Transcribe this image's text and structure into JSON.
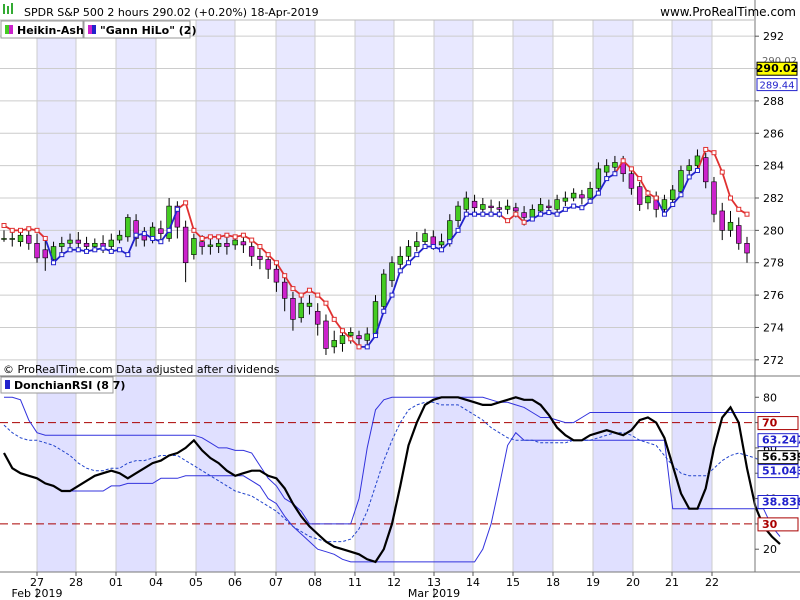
{
  "header": {
    "title": "SPDR S&P 500 2 hours 290.02 (+0.20%) 18-Apr-2019",
    "site": "www.ProRealTime.com"
  },
  "price_panel": {
    "legend": [
      {
        "label": "Heikin-Ashi",
        "up_color": "#44cc22",
        "down_color": "#cc22cc"
      },
      {
        "label": "\"Gann HiLo\" (2)",
        "color": "#2222cc"
      }
    ],
    "copyright": "© ProRealTime.com Data adjusted after dividends",
    "y_ticks": [
      272,
      274,
      276,
      278,
      280,
      282,
      284,
      286,
      288,
      290,
      292
    ],
    "last_price_badge": "290.02",
    "ghost_labels": [
      "290.02",
      "289.44"
    ]
  },
  "indicator_panel": {
    "title": "DonchianRSI (8 7)",
    "y_ticks": [
      20,
      30,
      40,
      50,
      60,
      70,
      80
    ],
    "badges": [
      {
        "text": "70",
        "value": 70,
        "color": "#aa0000"
      },
      {
        "text": "63.247",
        "value": 63.247,
        "color": "#2222cc"
      },
      {
        "text": "56.539",
        "value": 56.539,
        "color": "#000000"
      },
      {
        "text": "51.043",
        "value": 51.043,
        "color": "#2222cc"
      },
      {
        "text": "38.838",
        "value": 38.838,
        "color": "#2222cc"
      },
      {
        "text": "30",
        "value": 30,
        "color": "#aa0000"
      }
    ]
  },
  "x_axis": {
    "day_labels": [
      "27",
      "28",
      "01",
      "04",
      "05",
      "06",
      "07",
      "08",
      "11",
      "12",
      "13",
      "14",
      "15",
      "18",
      "19",
      "20",
      "21",
      "22"
    ],
    "month_labels": [
      {
        "text": "Feb 2019",
        "at_day": 0
      },
      {
        "text": "Mar 2019",
        "at_day": 10
      }
    ]
  },
  "chart_data": {
    "type": "candlestick",
    "title": "SPDR S&P 500 2 hours 290.02 (+0.20%) 18-Apr-2019",
    "price_range": [
      271,
      293
    ],
    "days": [
      "27",
      "28",
      "01",
      "04",
      "05",
      "06",
      "07",
      "08",
      "11",
      "12",
      "13",
      "14",
      "15",
      "18",
      "19",
      "20",
      "21",
      "22"
    ],
    "candles": [
      [
        279.5,
        279.5,
        280.0,
        279.3
      ],
      [
        279.5,
        279.5,
        280.0,
        279.0
      ],
      [
        279.3,
        279.7,
        280.1,
        279.0
      ],
      [
        279.7,
        279.2,
        280.0,
        278.8
      ],
      [
        279.2,
        278.3,
        279.8,
        278.0
      ],
      [
        278.8,
        278.3,
        279.5,
        277.5
      ],
      [
        278.2,
        279.0,
        279.3,
        278.0
      ],
      [
        279.0,
        279.2,
        279.6,
        278.5
      ],
      [
        279.2,
        279.4,
        279.8,
        278.8
      ],
      [
        279.4,
        279.2,
        279.9,
        278.8
      ],
      [
        279.2,
        279.0,
        279.6,
        278.6
      ],
      [
        279.0,
        279.2,
        279.5,
        278.8
      ],
      [
        279.2,
        279.0,
        279.7,
        278.6
      ],
      [
        279.0,
        279.4,
        279.8,
        278.7
      ],
      [
        279.4,
        279.7,
        280.0,
        279.2
      ],
      [
        279.6,
        280.8,
        281.0,
        279.3
      ],
      [
        280.6,
        279.5,
        281.0,
        279.0
      ],
      [
        279.7,
        279.4,
        280.2,
        279.0
      ],
      [
        279.5,
        280.2,
        280.5,
        279.2
      ],
      [
        280.1,
        279.8,
        280.6,
        279.3
      ],
      [
        279.5,
        281.5,
        282.0,
        279.3
      ],
      [
        281.5,
        280.2,
        281.8,
        279.5
      ],
      [
        280.2,
        278.0,
        280.6,
        276.8
      ],
      [
        278.5,
        279.5,
        279.8,
        278.2
      ],
      [
        279.3,
        279.0,
        279.7,
        278.5
      ],
      [
        279.0,
        279.1,
        279.5,
        278.5
      ],
      [
        279.0,
        279.2,
        279.6,
        278.6
      ],
      [
        279.2,
        279.0,
        279.6,
        278.5
      ],
      [
        279.1,
        279.4,
        279.7,
        278.8
      ],
      [
        279.3,
        279.1,
        279.6,
        278.6
      ],
      [
        279.0,
        278.4,
        279.4,
        277.8
      ],
      [
        278.4,
        278.2,
        278.9,
        277.6
      ],
      [
        278.2,
        277.6,
        278.6,
        277.0
      ],
      [
        277.6,
        276.8,
        278.0,
        276.2
      ],
      [
        276.8,
        275.8,
        277.2,
        275.0
      ],
      [
        275.8,
        274.5,
        276.2,
        273.8
      ],
      [
        274.6,
        275.5,
        276.0,
        274.3
      ],
      [
        275.3,
        275.5,
        276.0,
        274.8
      ],
      [
        275.0,
        274.2,
        275.5,
        273.5
      ],
      [
        274.4,
        272.7,
        274.8,
        272.3
      ],
      [
        272.8,
        273.2,
        273.8,
        272.4
      ],
      [
        273.0,
        273.5,
        273.8,
        272.5
      ],
      [
        273.5,
        273.7,
        274.0,
        273.0
      ],
      [
        273.5,
        273.3,
        273.8,
        272.8
      ],
      [
        273.2,
        273.6,
        274.0,
        272.9
      ],
      [
        273.6,
        275.6,
        276.0,
        273.4
      ],
      [
        275.3,
        277.3,
        277.6,
        275.0
      ],
      [
        276.9,
        278.0,
        278.4,
        276.5
      ],
      [
        277.9,
        278.4,
        279.0,
        277.5
      ],
      [
        278.4,
        279.0,
        279.4,
        278.0
      ],
      [
        279.0,
        279.3,
        279.9,
        278.7
      ],
      [
        279.3,
        279.8,
        280.1,
        279.0
      ],
      [
        279.6,
        279.1,
        280.0,
        278.8
      ],
      [
        279.1,
        279.3,
        279.8,
        278.8
      ],
      [
        279.3,
        280.6,
        281.0,
        279.0
      ],
      [
        280.6,
        281.5,
        281.8,
        280.2
      ],
      [
        281.3,
        282.0,
        282.4,
        281.0
      ],
      [
        281.8,
        281.4,
        282.2,
        281.0
      ],
      [
        281.3,
        281.6,
        282.0,
        281.0
      ],
      [
        281.5,
        281.4,
        281.9,
        281.0
      ],
      [
        281.4,
        281.3,
        281.8,
        280.8
      ],
      [
        281.3,
        281.5,
        281.9,
        281.0
      ],
      [
        281.4,
        281.2,
        281.7,
        280.8
      ],
      [
        281.1,
        280.8,
        281.5,
        280.3
      ],
      [
        280.8,
        281.3,
        281.6,
        280.6
      ],
      [
        281.2,
        281.6,
        282.0,
        281.0
      ],
      [
        281.5,
        281.4,
        281.9,
        281.0
      ],
      [
        281.3,
        281.9,
        282.2,
        281.0
      ],
      [
        281.8,
        282.0,
        282.4,
        281.5
      ],
      [
        282.0,
        282.3,
        282.6,
        281.8
      ],
      [
        282.2,
        282.0,
        282.5,
        281.6
      ],
      [
        282.0,
        282.6,
        283.0,
        281.8
      ],
      [
        282.6,
        283.8,
        284.2,
        282.3
      ],
      [
        283.6,
        284.0,
        284.4,
        283.2
      ],
      [
        283.9,
        284.2,
        284.6,
        283.5
      ],
      [
        284.2,
        283.5,
        284.6,
        283.0
      ],
      [
        283.5,
        282.6,
        283.9,
        282.2
      ],
      [
        282.7,
        281.6,
        283.0,
        281.2
      ],
      [
        281.7,
        282.1,
        282.5,
        281.3
      ],
      [
        282.1,
        281.3,
        282.4,
        280.8
      ],
      [
        281.3,
        281.9,
        282.2,
        281.0
      ],
      [
        281.9,
        282.5,
        282.8,
        281.6
      ],
      [
        282.4,
        283.7,
        284.0,
        282.2
      ],
      [
        283.7,
        284.0,
        284.4,
        283.3
      ],
      [
        284.0,
        284.6,
        285.0,
        283.7
      ],
      [
        284.5,
        283.0,
        284.8,
        282.6
      ],
      [
        283.0,
        281.0,
        283.3,
        280.5
      ],
      [
        281.2,
        280.0,
        281.7,
        279.4
      ],
      [
        280.0,
        280.5,
        281.2,
        279.6
      ],
      [
        280.3,
        279.2,
        280.8,
        278.8
      ],
      [
        279.2,
        278.6,
        279.6,
        278.0
      ]
    ],
    "gann_hilo": [
      [
        280.3,
        "u"
      ],
      [
        280.0,
        "u"
      ],
      [
        280.0,
        "u"
      ],
      [
        280.1,
        "u"
      ],
      [
        280.0,
        "u"
      ],
      [
        279.5,
        "u"
      ],
      [
        278.0,
        "d"
      ],
      [
        278.5,
        "d"
      ],
      [
        278.8,
        "d"
      ],
      [
        278.8,
        "d"
      ],
      [
        278.7,
        "d"
      ],
      [
        278.8,
        "d"
      ],
      [
        278.9,
        "d"
      ],
      [
        278.7,
        "d"
      ],
      [
        278.8,
        "d"
      ],
      [
        278.5,
        "d"
      ],
      [
        279.7,
        "d"
      ],
      [
        279.8,
        "d"
      ],
      [
        279.5,
        "d"
      ],
      [
        279.3,
        "d"
      ],
      [
        280.0,
        "d"
      ],
      [
        281.3,
        "d"
      ],
      [
        281.7,
        "u"
      ],
      [
        280.0,
        "u"
      ],
      [
        279.5,
        "u"
      ],
      [
        279.6,
        "u"
      ],
      [
        279.6,
        "u"
      ],
      [
        279.7,
        "u"
      ],
      [
        279.6,
        "u"
      ],
      [
        279.7,
        "u"
      ],
      [
        279.4,
        "u"
      ],
      [
        279.0,
        "u"
      ],
      [
        278.5,
        "u"
      ],
      [
        278.0,
        "u"
      ],
      [
        277.2,
        "u"
      ],
      [
        276.4,
        "u"
      ],
      [
        276.0,
        "u"
      ],
      [
        276.3,
        "u"
      ],
      [
        276.0,
        "u"
      ],
      [
        275.5,
        "u"
      ],
      [
        274.5,
        "u"
      ],
      [
        273.8,
        "u"
      ],
      [
        273.3,
        "u"
      ],
      [
        272.8,
        "u"
      ],
      [
        272.8,
        "d"
      ],
      [
        273.5,
        "d"
      ],
      [
        275.0,
        "d"
      ],
      [
        276.0,
        "d"
      ],
      [
        277.5,
        "d"
      ],
      [
        278.0,
        "d"
      ],
      [
        278.5,
        "d"
      ],
      [
        279.0,
        "d"
      ],
      [
        279.0,
        "d"
      ],
      [
        278.8,
        "d"
      ],
      [
        279.3,
        "d"
      ],
      [
        280.0,
        "d"
      ],
      [
        281.0,
        "d"
      ],
      [
        281.0,
        "d"
      ],
      [
        281.0,
        "d"
      ],
      [
        281.0,
        "d"
      ],
      [
        281.0,
        "d"
      ],
      [
        280.6,
        "u"
      ],
      [
        281.0,
        "u"
      ],
      [
        280.5,
        "u"
      ],
      [
        280.7,
        "d"
      ],
      [
        281.0,
        "d"
      ],
      [
        281.1,
        "d"
      ],
      [
        281.0,
        "d"
      ],
      [
        281.3,
        "d"
      ],
      [
        281.5,
        "d"
      ],
      [
        281.4,
        "d"
      ],
      [
        281.8,
        "d"
      ],
      [
        282.3,
        "d"
      ],
      [
        283.2,
        "d"
      ],
      [
        283.5,
        "d"
      ],
      [
        284.3,
        "u"
      ],
      [
        283.8,
        "u"
      ],
      [
        283.2,
        "u"
      ],
      [
        282.3,
        "u"
      ],
      [
        282.0,
        "u"
      ],
      [
        281.0,
        "d"
      ],
      [
        281.6,
        "d"
      ],
      [
        282.2,
        "d"
      ],
      [
        283.3,
        "d"
      ],
      [
        283.7,
        "d"
      ],
      [
        285.0,
        "u"
      ],
      [
        284.8,
        "u"
      ],
      [
        283.6,
        "u"
      ],
      [
        282.0,
        "u"
      ],
      [
        281.3,
        "u"
      ],
      [
        281.0,
        "u"
      ]
    ],
    "rsi_range": [
      11,
      88
    ],
    "rsi_levels": [
      70,
      30
    ],
    "donchian_rsi": [
      58,
      52,
      50,
      49,
      48,
      46,
      45,
      43,
      43,
      45,
      47,
      49,
      50,
      51,
      50,
      48,
      50,
      52,
      54,
      55,
      57,
      58,
      60,
      63,
      59,
      56,
      54,
      51,
      49,
      50,
      51,
      51,
      49,
      48,
      44,
      38,
      33,
      29,
      26,
      23,
      21,
      20,
      19,
      18,
      16,
      15,
      20,
      30,
      45,
      61,
      70,
      77,
      79,
      80,
      80,
      80,
      79,
      78,
      77,
      77,
      78,
      79,
      80,
      79,
      79,
      77,
      73,
      68,
      65,
      63,
      63,
      65,
      66,
      67,
      66,
      65,
      67,
      71,
      72,
      70,
      64,
      53,
      42,
      36,
      36,
      44,
      60,
      72,
      76,
      70,
      52,
      37,
      29,
      25,
      22
    ],
    "donchian_mid": [
      69,
      66,
      64,
      63,
      63,
      62,
      61,
      59,
      57,
      54,
      52,
      51,
      51,
      52,
      52,
      54,
      55,
      55,
      56,
      57,
      57,
      57,
      55,
      53,
      51,
      49,
      47,
      45,
      43,
      42,
      41,
      39,
      37,
      35,
      32,
      29,
      27,
      25,
      24,
      23,
      23,
      23,
      24,
      28,
      35,
      45,
      55,
      63,
      70,
      75,
      77,
      78,
      78,
      77,
      77,
      77,
      75,
      73,
      71,
      68,
      66,
      64,
      63,
      63,
      63,
      62,
      62,
      62,
      62,
      63,
      63,
      63,
      64,
      65,
      66,
      66,
      65,
      63,
      62,
      61,
      57,
      53,
      50,
      49,
      49,
      49,
      52,
      55,
      57,
      58,
      57,
      56,
      54,
      52,
      51
    ],
    "donchian_upper": [
      80,
      80,
      79,
      71,
      66,
      65,
      65,
      65,
      65,
      65,
      65,
      65,
      65,
      65,
      65,
      65,
      65,
      65,
      65,
      65,
      65,
      65,
      65,
      65,
      64,
      62,
      60,
      60,
      59,
      59,
      58,
      53,
      48,
      45,
      40,
      38,
      35,
      30,
      30,
      30,
      30,
      30,
      30,
      40,
      60,
      75,
      79,
      80,
      80,
      80,
      80,
      80,
      80,
      80,
      80,
      80,
      80,
      80,
      80,
      79,
      78,
      78,
      77,
      76,
      74,
      72,
      72,
      71,
      70,
      70,
      72,
      74,
      74,
      74,
      74,
      74,
      74,
      74,
      74,
      74,
      74,
      74,
      74,
      74,
      74,
      74,
      74,
      74,
      74,
      74,
      74,
      74,
      74,
      74,
      74
    ],
    "donchian_lower": [
      58,
      52,
      50,
      49,
      48,
      46,
      45,
      43,
      43,
      43,
      43,
      43,
      43,
      45,
      45,
      46,
      46,
      46,
      46,
      48,
      48,
      48,
      49,
      49,
      49,
      49,
      49,
      49,
      49,
      49,
      47,
      45,
      40,
      38,
      33,
      29,
      26,
      23,
      20,
      19,
      18,
      16,
      15,
      15,
      15,
      15,
      15,
      15,
      15,
      15,
      15,
      15,
      15,
      15,
      15,
      15,
      15,
      15,
      20,
      30,
      45,
      61,
      66,
      63,
      63,
      63,
      63,
      63,
      63,
      63,
      63,
      63,
      63,
      63,
      63,
      63,
      63,
      63,
      63,
      63,
      63,
      36,
      36,
      36,
      36,
      36,
      36,
      36,
      36,
      36,
      36,
      36,
      36,
      29,
      25
    ]
  }
}
